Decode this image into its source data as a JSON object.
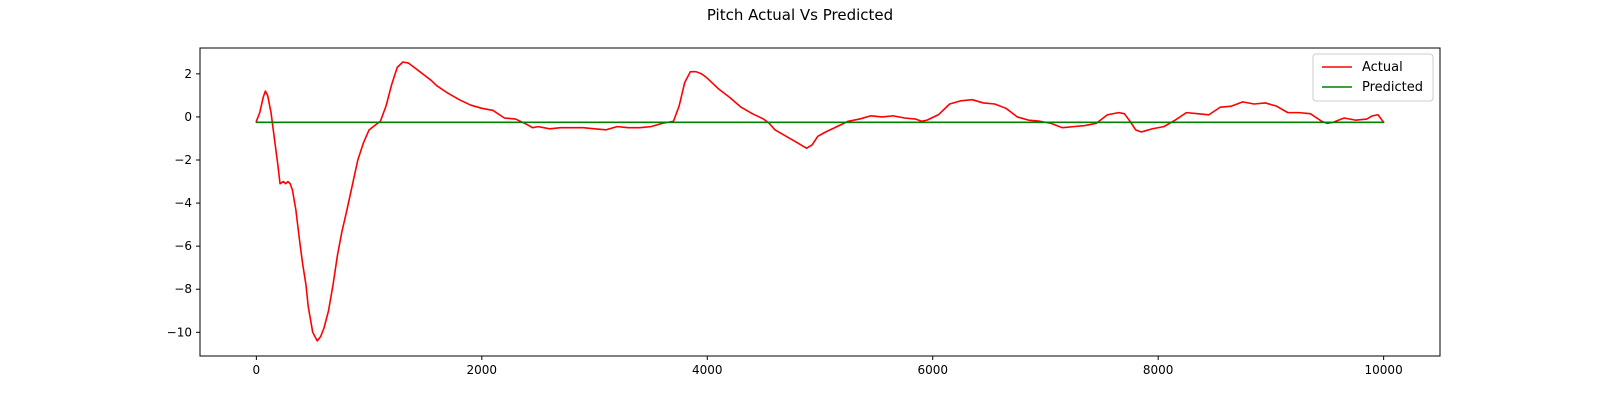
{
  "chart_data": {
    "type": "line",
    "title": "Pitch Actual Vs Predicted",
    "xlabel": "",
    "ylabel": "",
    "xlim": [
      -500,
      10500
    ],
    "ylim": [
      -11.1,
      3.2
    ],
    "xticks": [
      0,
      2000,
      4000,
      6000,
      8000,
      10000
    ],
    "xtick_labels": [
      "0",
      "2000",
      "4000",
      "6000",
      "8000",
      "10000"
    ],
    "yticks": [
      2,
      0,
      -2,
      -4,
      -6,
      -8,
      -10
    ],
    "ytick_labels": [
      "2",
      "0",
      "−2",
      "−4",
      "−6",
      "−8",
      "−10"
    ],
    "grid": false,
    "legend_position": "top-right",
    "series": [
      {
        "name": "Actual",
        "color": "#ff0000",
        "points": [
          [
            0,
            -0.2
          ],
          [
            30,
            0.2
          ],
          [
            60,
            0.9
          ],
          [
            80,
            1.2
          ],
          [
            100,
            1.0
          ],
          [
            130,
            0.2
          ],
          [
            160,
            -1.0
          ],
          [
            190,
            -2.2
          ],
          [
            210,
            -3.1
          ],
          [
            240,
            -3.0
          ],
          [
            260,
            -3.1
          ],
          [
            280,
            -3.0
          ],
          [
            300,
            -3.1
          ],
          [
            320,
            -3.4
          ],
          [
            350,
            -4.3
          ],
          [
            380,
            -5.6
          ],
          [
            410,
            -6.8
          ],
          [
            440,
            -7.8
          ],
          [
            460,
            -8.8
          ],
          [
            500,
            -10.0
          ],
          [
            540,
            -10.4
          ],
          [
            570,
            -10.2
          ],
          [
            600,
            -9.8
          ],
          [
            640,
            -9.0
          ],
          [
            680,
            -7.8
          ],
          [
            720,
            -6.4
          ],
          [
            760,
            -5.3
          ],
          [
            800,
            -4.4
          ],
          [
            850,
            -3.2
          ],
          [
            900,
            -2.0
          ],
          [
            950,
            -1.2
          ],
          [
            1000,
            -0.6
          ],
          [
            1050,
            -0.4
          ],
          [
            1100,
            -0.2
          ],
          [
            1150,
            0.5
          ],
          [
            1200,
            1.5
          ],
          [
            1250,
            2.3
          ],
          [
            1300,
            2.55
          ],
          [
            1350,
            2.5
          ],
          [
            1400,
            2.3
          ],
          [
            1450,
            2.1
          ],
          [
            1500,
            1.9
          ],
          [
            1550,
            1.7
          ],
          [
            1600,
            1.45
          ],
          [
            1700,
            1.1
          ],
          [
            1800,
            0.8
          ],
          [
            1900,
            0.55
          ],
          [
            2000,
            0.4
          ],
          [
            2100,
            0.3
          ],
          [
            2200,
            -0.05
          ],
          [
            2300,
            -0.1
          ],
          [
            2400,
            -0.35
          ],
          [
            2450,
            -0.5
          ],
          [
            2500,
            -0.45
          ],
          [
            2550,
            -0.5
          ],
          [
            2600,
            -0.55
          ],
          [
            2700,
            -0.5
          ],
          [
            2800,
            -0.5
          ],
          [
            2900,
            -0.5
          ],
          [
            3000,
            -0.55
          ],
          [
            3100,
            -0.6
          ],
          [
            3200,
            -0.45
          ],
          [
            3300,
            -0.5
          ],
          [
            3400,
            -0.5
          ],
          [
            3500,
            -0.45
          ],
          [
            3600,
            -0.3
          ],
          [
            3700,
            -0.2
          ],
          [
            3750,
            0.5
          ],
          [
            3800,
            1.6
          ],
          [
            3850,
            2.1
          ],
          [
            3900,
            2.1
          ],
          [
            3950,
            2.0
          ],
          [
            4000,
            1.8
          ],
          [
            4100,
            1.3
          ],
          [
            4200,
            0.9
          ],
          [
            4300,
            0.45
          ],
          [
            4400,
            0.15
          ],
          [
            4500,
            -0.1
          ],
          [
            4550,
            -0.3
          ],
          [
            4600,
            -0.6
          ],
          [
            4700,
            -0.9
          ],
          [
            4800,
            -1.2
          ],
          [
            4880,
            -1.45
          ],
          [
            4930,
            -1.3
          ],
          [
            4980,
            -0.9
          ],
          [
            5050,
            -0.7
          ],
          [
            5150,
            -0.45
          ],
          [
            5250,
            -0.2
          ],
          [
            5350,
            -0.1
          ],
          [
            5450,
            0.05
          ],
          [
            5550,
            0.0
          ],
          [
            5650,
            0.05
          ],
          [
            5750,
            -0.05
          ],
          [
            5850,
            -0.1
          ],
          [
            5900,
            -0.2
          ],
          [
            5950,
            -0.15
          ],
          [
            6050,
            0.1
          ],
          [
            6150,
            0.6
          ],
          [
            6250,
            0.75
          ],
          [
            6350,
            0.8
          ],
          [
            6450,
            0.65
          ],
          [
            6550,
            0.6
          ],
          [
            6650,
            0.4
          ],
          [
            6750,
            0.0
          ],
          [
            6850,
            -0.15
          ],
          [
            6950,
            -0.2
          ],
          [
            7050,
            -0.3
          ],
          [
            7150,
            -0.5
          ],
          [
            7250,
            -0.45
          ],
          [
            7350,
            -0.4
          ],
          [
            7450,
            -0.3
          ],
          [
            7550,
            0.1
          ],
          [
            7650,
            0.2
          ],
          [
            7700,
            0.15
          ],
          [
            7750,
            -0.2
          ],
          [
            7800,
            -0.6
          ],
          [
            7850,
            -0.7
          ],
          [
            7950,
            -0.55
          ],
          [
            8050,
            -0.45
          ],
          [
            8150,
            -0.15
          ],
          [
            8250,
            0.2
          ],
          [
            8350,
            0.15
          ],
          [
            8450,
            0.1
          ],
          [
            8550,
            0.45
          ],
          [
            8650,
            0.5
          ],
          [
            8750,
            0.7
          ],
          [
            8850,
            0.6
          ],
          [
            8950,
            0.65
          ],
          [
            9050,
            0.5
          ],
          [
            9150,
            0.2
          ],
          [
            9250,
            0.2
          ],
          [
            9350,
            0.15
          ],
          [
            9450,
            -0.2
          ],
          [
            9500,
            -0.3
          ],
          [
            9550,
            -0.25
          ],
          [
            9650,
            -0.05
          ],
          [
            9750,
            -0.15
          ],
          [
            9850,
            -0.1
          ],
          [
            9900,
            0.05
          ],
          [
            9950,
            0.1
          ],
          [
            10000,
            -0.25
          ]
        ]
      },
      {
        "name": "Predicted",
        "color": "#008000",
        "points": [
          [
            0,
            -0.25
          ],
          [
            10000,
            -0.25
          ]
        ]
      }
    ]
  }
}
